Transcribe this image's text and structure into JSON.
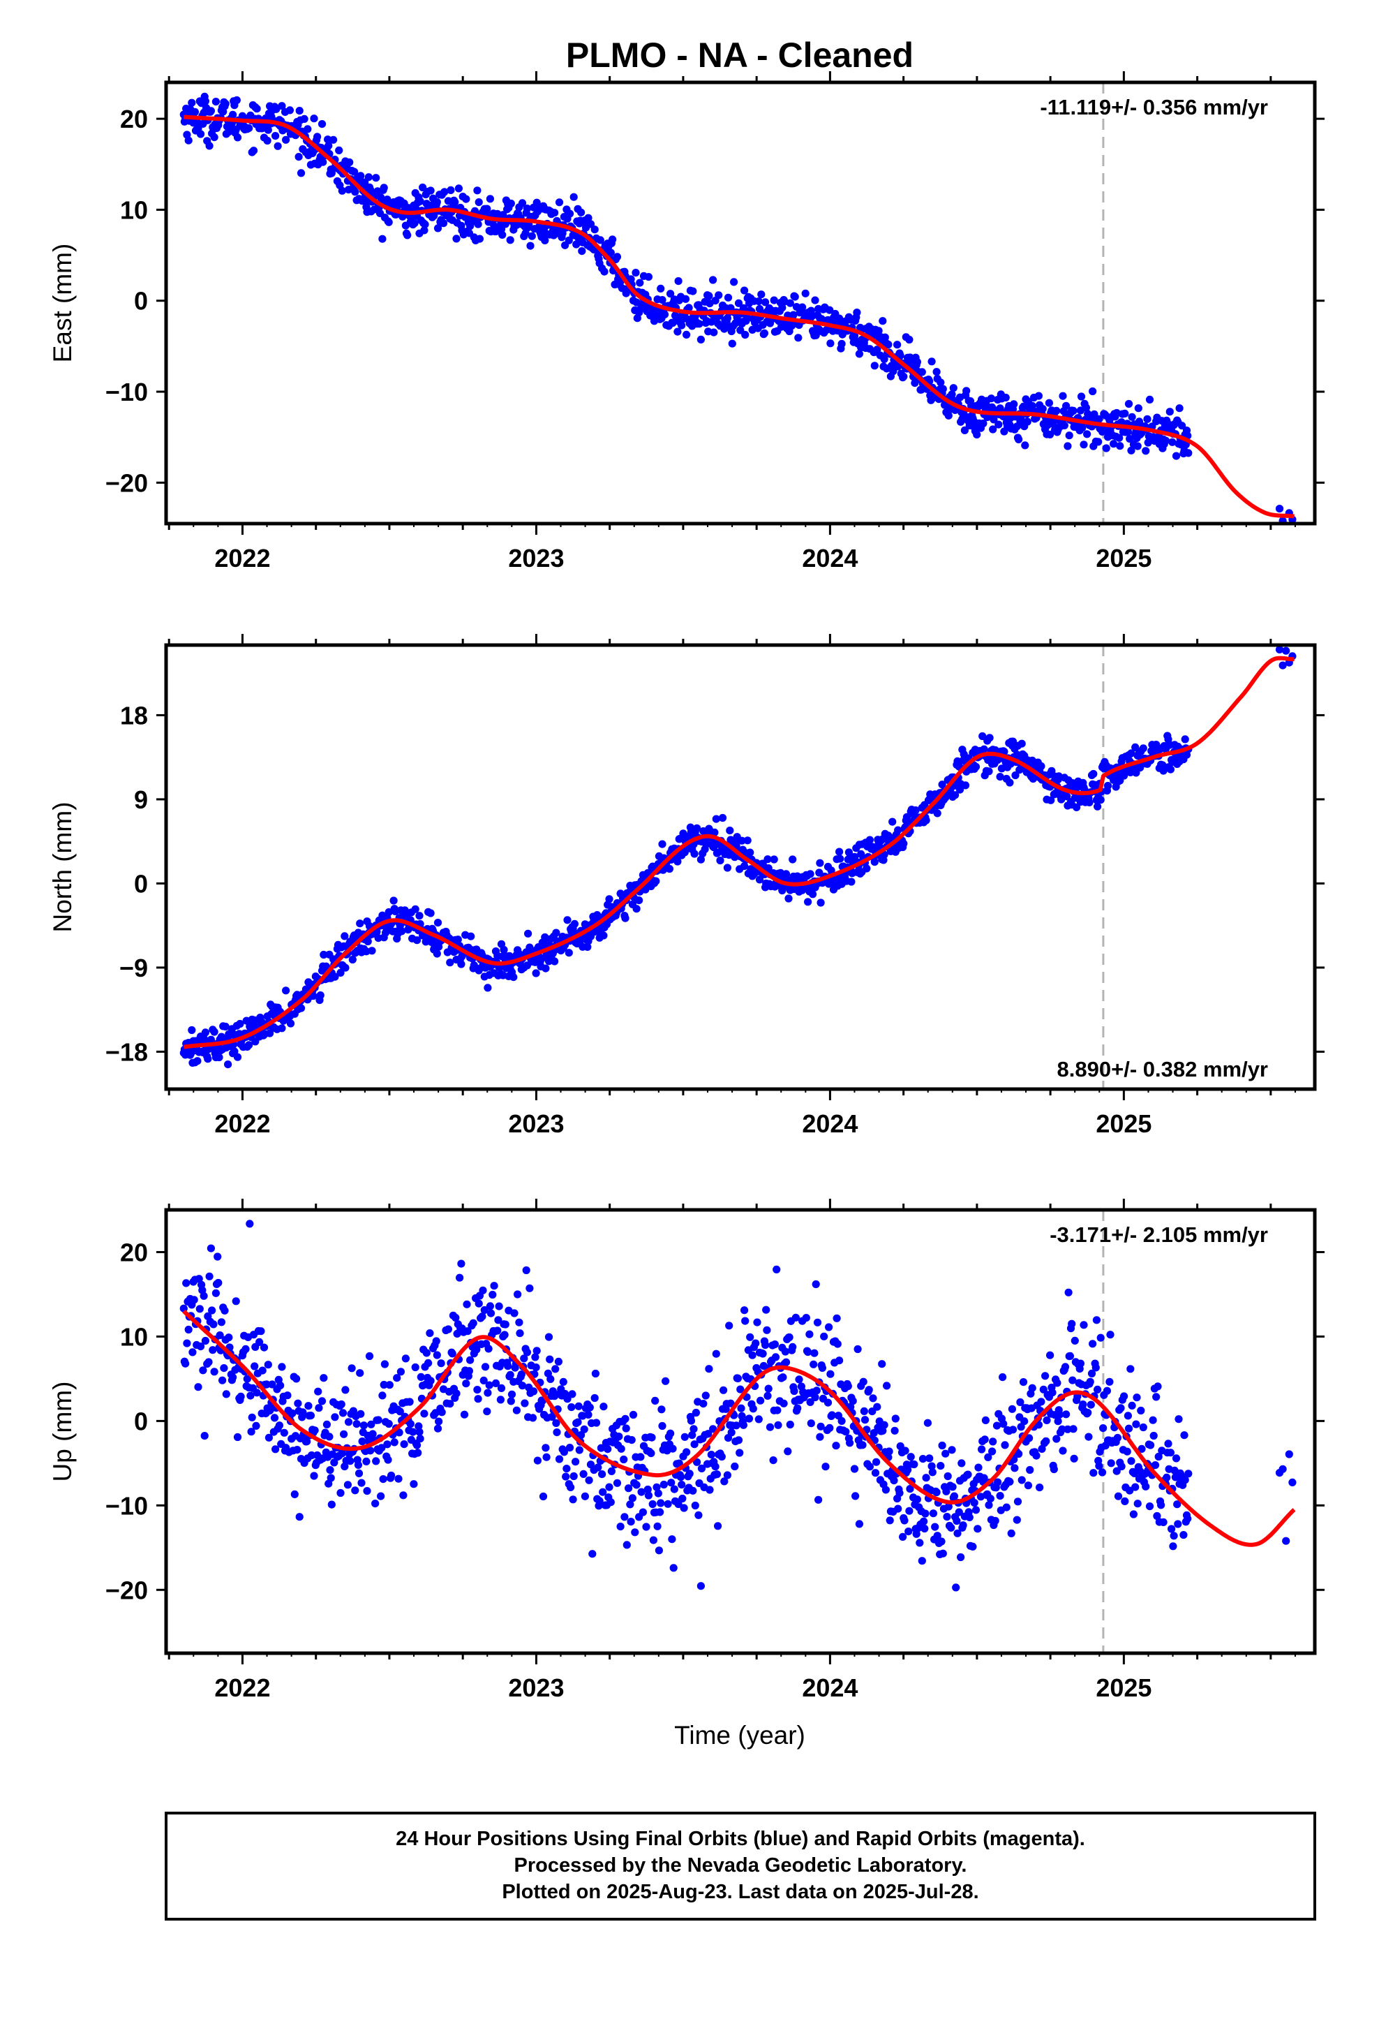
{
  "title": "PLMO  - NA - Cleaned",
  "xlabel": "Time (year)",
  "footer": {
    "line1": "24 Hour Positions Using Final Orbits (blue) and Rapid Orbits (magenta).",
    "line2": "Processed by the Nevada Geodetic Laboratory.",
    "line3": "Plotted on 2025-Aug-23. Last data on 2025-Jul-28."
  },
  "colors": {
    "final_points": "#0000ff",
    "rapid_points": "#ff00ff",
    "model_line": "#ff0000",
    "event_line": "#b4b4b4"
  },
  "chart_data": [
    {
      "type": "scatter",
      "component": "east",
      "ylabel": "East (mm)",
      "rate_label": "-11.119+/- 0.356 mm/yr",
      "xlim": [
        2021.74,
        2025.65
      ],
      "ylim": [
        -24.5,
        24
      ],
      "yticks": [
        20,
        10,
        0,
        -10,
        -20
      ],
      "ytick_labels": [
        "20",
        "10",
        "0",
        "−10",
        "−20"
      ],
      "xticks": [
        2022,
        2023,
        2024,
        2025
      ],
      "xtick_labels": [
        "2022",
        "2023",
        "2024",
        "2025"
      ],
      "event_line_x": 2024.93,
      "data_range": [
        2021.8,
        2025.22
      ],
      "end_segment": [
        2025.53,
        2025.58
      ],
      "scatter_sigma": 1.2,
      "model_points": [
        [
          2021.8,
          20.2
        ],
        [
          2022.0,
          19.8
        ],
        [
          2022.15,
          19.2
        ],
        [
          2022.3,
          15.5
        ],
        [
          2022.45,
          11.0
        ],
        [
          2022.55,
          9.7
        ],
        [
          2022.7,
          10.0
        ],
        [
          2022.85,
          9.0
        ],
        [
          2023.0,
          8.7
        ],
        [
          2023.15,
          7.5
        ],
        [
          2023.25,
          4.5
        ],
        [
          2023.35,
          0.5
        ],
        [
          2023.5,
          -1.2
        ],
        [
          2023.7,
          -1.3
        ],
        [
          2023.85,
          -2.0
        ],
        [
          2024.0,
          -2.7
        ],
        [
          2024.12,
          -3.8
        ],
        [
          2024.25,
          -7.0
        ],
        [
          2024.4,
          -11.0
        ],
        [
          2024.5,
          -12.2
        ],
        [
          2024.7,
          -12.5
        ],
        [
          2024.9,
          -13.5
        ],
        [
          2025.1,
          -14.3
        ],
        [
          2025.25,
          -16.0
        ],
        [
          2025.38,
          -21.0
        ],
        [
          2025.48,
          -23.3
        ],
        [
          2025.58,
          -23.7
        ]
      ]
    },
    {
      "type": "scatter",
      "component": "north",
      "ylabel": "North (mm)",
      "rate_label": "8.890+/- 0.382 mm/yr",
      "xlim": [
        2021.74,
        2025.65
      ],
      "ylim": [
        -22,
        25.5
      ],
      "yticks": [
        18,
        9,
        0,
        -9,
        -18
      ],
      "ytick_labels": [
        "18",
        "9",
        "0",
        "−9",
        "−18"
      ],
      "xticks": [
        2022,
        2023,
        2024,
        2025
      ],
      "xtick_labels": [
        "2022",
        "2023",
        "2024",
        "2025"
      ],
      "event_line_x": 2024.93,
      "data_range": [
        2021.8,
        2025.22
      ],
      "end_segment": [
        2025.53,
        2025.58
      ],
      "scatter_sigma": 0.9,
      "model_points": [
        [
          2021.8,
          -17.5
        ],
        [
          2022.0,
          -16.5
        ],
        [
          2022.2,
          -12.5
        ],
        [
          2022.35,
          -7.5
        ],
        [
          2022.5,
          -4.0
        ],
        [
          2022.65,
          -5.5
        ],
        [
          2022.85,
          -8.5
        ],
        [
          2023.0,
          -7.5
        ],
        [
          2023.2,
          -4.5
        ],
        [
          2023.35,
          -0.5
        ],
        [
          2023.5,
          4.0
        ],
        [
          2023.6,
          5.0
        ],
        [
          2023.72,
          2.5
        ],
        [
          2023.85,
          0.0
        ],
        [
          2024.0,
          0.8
        ],
        [
          2024.2,
          4.0
        ],
        [
          2024.35,
          8.5
        ],
        [
          2024.5,
          13.5
        ],
        [
          2024.62,
          13.3
        ],
        [
          2024.8,
          10.0
        ],
        [
          2024.92,
          10.0
        ],
        [
          2024.93,
          11.5
        ],
        [
          2025.1,
          13.5
        ],
        [
          2025.25,
          15.0
        ],
        [
          2025.4,
          20.0
        ],
        [
          2025.5,
          23.8
        ],
        [
          2025.58,
          24.0
        ]
      ]
    },
    {
      "type": "scatter",
      "component": "up",
      "ylabel": "Up (mm)",
      "rate_label": "-3.171+/- 2.105 mm/yr",
      "xlim": [
        2021.74,
        2025.65
      ],
      "ylim": [
        -27.5,
        25
      ],
      "yticks": [
        20,
        10,
        0,
        -10,
        -20
      ],
      "ytick_labels": [
        "20",
        "10",
        "0",
        "−10",
        "−20"
      ],
      "xticks": [
        2022,
        2023,
        2024,
        2025
      ],
      "xtick_labels": [
        "2022",
        "2023",
        "2024",
        "2025"
      ],
      "event_line_x": 2024.93,
      "data_range": [
        2021.8,
        2025.22
      ],
      "end_segment": [
        2025.53,
        2025.58
      ],
      "scatter_sigma": 4.0,
      "model_points": [
        [
          2021.8,
          13.0
        ],
        [
          2022.0,
          6.5
        ],
        [
          2022.2,
          -1.0
        ],
        [
          2022.4,
          -3.2
        ],
        [
          2022.6,
          1.5
        ],
        [
          2022.8,
          9.8
        ],
        [
          2022.95,
          6.5
        ],
        [
          2023.15,
          -2.5
        ],
        [
          2023.4,
          -6.4
        ],
        [
          2023.55,
          -4.0
        ],
        [
          2023.75,
          5.0
        ],
        [
          2023.85,
          6.3
        ],
        [
          2024.0,
          3.5
        ],
        [
          2024.2,
          -5.0
        ],
        [
          2024.4,
          -9.6
        ],
        [
          2024.55,
          -7.0
        ],
        [
          2024.7,
          0.0
        ],
        [
          2024.82,
          3.3
        ],
        [
          2024.92,
          2.0
        ],
        [
          2025.1,
          -6.0
        ],
        [
          2025.3,
          -12.5
        ],
        [
          2025.45,
          -14.6
        ],
        [
          2025.58,
          -10.5
        ]
      ]
    }
  ]
}
